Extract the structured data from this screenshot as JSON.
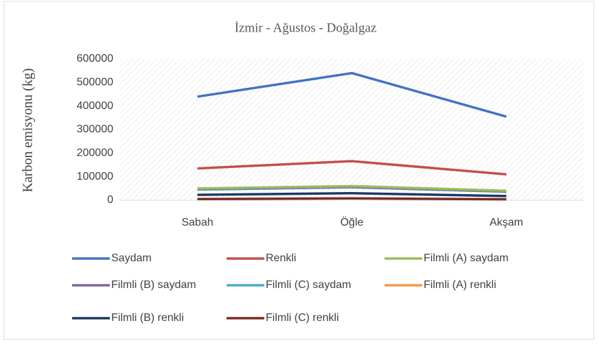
{
  "chart_data": {
    "type": "line",
    "title": "İzmir - Ağustos - Doğalgaz",
    "ylabel": "Karbon emisyonu (kg)",
    "categories": [
      "Sabah",
      "Öğle",
      "Akşam"
    ],
    "series": [
      {
        "name": "Saydam",
        "color": "#4472c4",
        "values": [
          440000,
          540000,
          355000
        ]
      },
      {
        "name": "Renkli",
        "color": "#c0504d",
        "values": [
          135000,
          166000,
          110000
        ]
      },
      {
        "name": "Filmli (A) saydam",
        "color": "#9bbb59",
        "values": [
          50000,
          60000,
          40000
        ]
      },
      {
        "name": "Filmli (B) saydam",
        "color": "#8064a2",
        "values": [
          48000,
          57000,
          38000
        ]
      },
      {
        "name": "Filmli (C) saydam",
        "color": "#4bacc6",
        "values": [
          45000,
          55000,
          36000
        ]
      },
      {
        "name": "Filmli (A) renkli",
        "color": "#f79646",
        "values": [
          46000,
          56000,
          37000
        ]
      },
      {
        "name": "Filmli (B) renkli",
        "color": "#1f3864",
        "values": [
          23000,
          30000,
          18000
        ]
      },
      {
        "name": "Filmli (C) renkli",
        "color": "#7b2c22",
        "values": [
          5000,
          8000,
          4000
        ]
      }
    ],
    "ylim": [
      0,
      600000
    ],
    "yticks": [
      0,
      100000,
      200000,
      300000,
      400000,
      500000,
      600000
    ],
    "grid": false
  }
}
